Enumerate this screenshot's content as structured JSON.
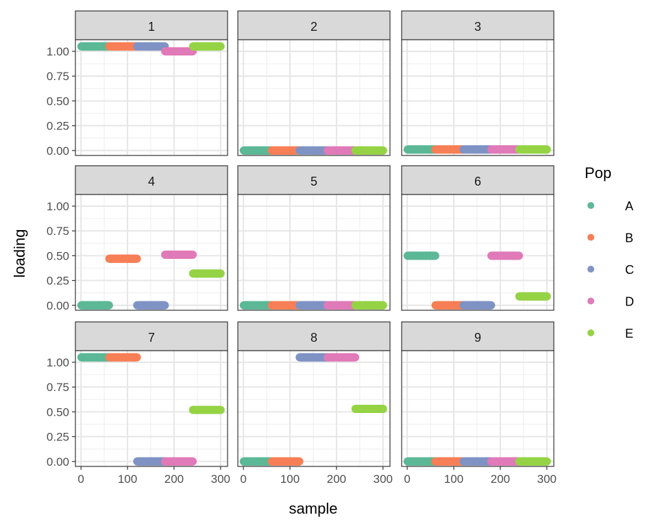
{
  "chart_data": {
    "type": "scatter",
    "xlabel": "sample",
    "ylabel": "loading",
    "xlim": [
      -12,
      315
    ],
    "ylim": [
      -0.05,
      1.117
    ],
    "xticks": [
      0,
      100,
      200,
      300
    ],
    "yticks": [
      0,
      0.25,
      0.5,
      0.75,
      1.0
    ],
    "ytick_labels": [
      "0.00",
      "0.25",
      "0.50",
      "0.75",
      "1.00"
    ],
    "grid": true,
    "legend": {
      "title": "Pop",
      "placement": "right",
      "entries": [
        "A",
        "B",
        "C",
        "D",
        "E"
      ],
      "colors": [
        "#5cb896",
        "#f77f56",
        "#7f93c4",
        "#e07ab8",
        "#95d345"
      ]
    },
    "population_sample_ranges": {
      "A": [
        1,
        60
      ],
      "B": [
        61,
        120
      ],
      "C": [
        121,
        180
      ],
      "D": [
        181,
        240
      ],
      "E": [
        241,
        300
      ]
    },
    "facets": [
      {
        "label": "1",
        "loading": {
          "A": 1.05,
          "B": 1.05,
          "C": 1.05,
          "D": 1.0,
          "E": 1.05
        }
      },
      {
        "label": "2",
        "loading": {
          "A": 0.0,
          "B": 0.0,
          "C": 0.0,
          "D": 0.0,
          "E": 0.0
        }
      },
      {
        "label": "3",
        "loading": {
          "A": 0.01,
          "B": 0.01,
          "C": 0.01,
          "D": 0.01,
          "E": 0.01
        }
      },
      {
        "label": "4",
        "loading": {
          "A": 0.0,
          "B": 0.47,
          "C": 0.0,
          "D": 0.51,
          "E": 0.32
        }
      },
      {
        "label": "5",
        "loading": {
          "A": 0.0,
          "B": 0.0,
          "C": 0.0,
          "D": 0.0,
          "E": 0.0
        }
      },
      {
        "label": "6",
        "loading": {
          "A": 0.5,
          "B": 0.0,
          "C": 0.0,
          "D": 0.5,
          "E": 0.09
        }
      },
      {
        "label": "7",
        "loading": {
          "A": 1.05,
          "B": 1.05,
          "C": 0.0,
          "D": 0.0,
          "E": 0.52
        }
      },
      {
        "label": "8",
        "loading": {
          "A": 0.0,
          "B": 0.0,
          "C": 1.05,
          "D": 1.05,
          "E": 0.53
        }
      },
      {
        "label": "9",
        "loading": {
          "A": 0.0,
          "B": 0.0,
          "C": 0.0,
          "D": 0.0,
          "E": 0.0
        }
      }
    ]
  }
}
